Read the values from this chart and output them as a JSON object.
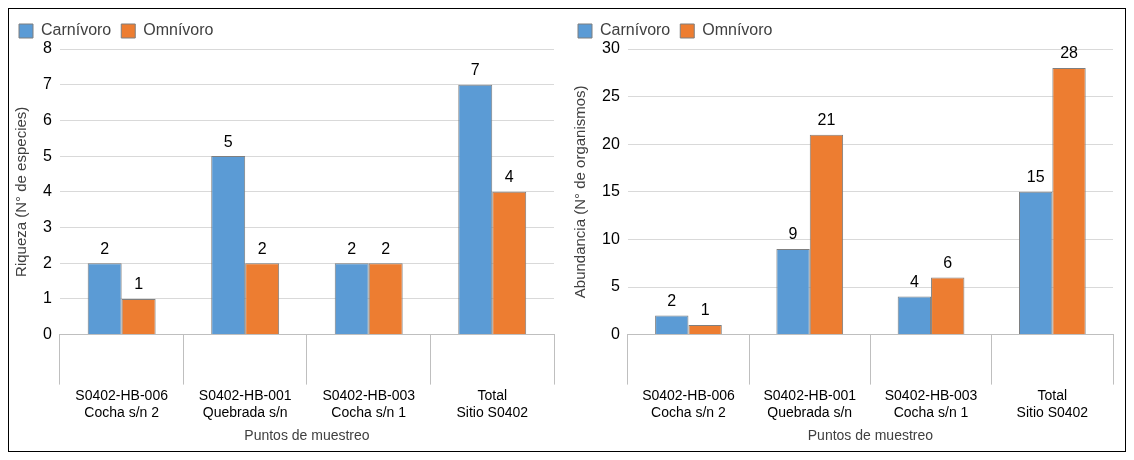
{
  "chart_data": [
    {
      "type": "bar",
      "categories": [
        "S0402-HB-006\nCocha s/n 2",
        "S0402-HB-001\nQuebrada s/n",
        "S0402-HB-003\nCocha s/n 1",
        "Total\nSitio S0402"
      ],
      "series": [
        {
          "name": "Carnívoro",
          "color": "#5b9bd5",
          "values": [
            2,
            5,
            2,
            7
          ]
        },
        {
          "name": "Omnívoro",
          "color": "#ed7d31",
          "values": [
            1,
            2,
            2,
            4
          ]
        }
      ],
      "xlabel": "Puntos de muestreo",
      "ylabel": "Riqueza (N° de especies)",
      "ylim": [
        0,
        8
      ],
      "yticks": [
        0,
        1,
        2,
        3,
        4,
        5,
        6,
        7,
        8
      ],
      "grid": "y",
      "legend": "top",
      "data_labels": true
    },
    {
      "type": "bar",
      "categories": [
        "S0402-HB-006\nCocha s/n 2",
        "S0402-HB-001\nQuebrada s/n",
        "S0402-HB-003\nCocha s/n 1",
        "Total\nSitio S0402"
      ],
      "series": [
        {
          "name": "Carnívoro",
          "color": "#5b9bd5",
          "values": [
            2,
            9,
            4,
            15
          ]
        },
        {
          "name": "Omnívoro",
          "color": "#ed7d31",
          "values": [
            1,
            21,
            6,
            28
          ]
        }
      ],
      "xlabel": "Puntos de muestreo",
      "ylabel": "Abundancia (N° de organismos)",
      "ylim": [
        0,
        30
      ],
      "yticks": [
        0,
        5,
        10,
        15,
        20,
        25,
        30
      ],
      "grid": "y",
      "legend": "top",
      "data_labels": true
    }
  ]
}
